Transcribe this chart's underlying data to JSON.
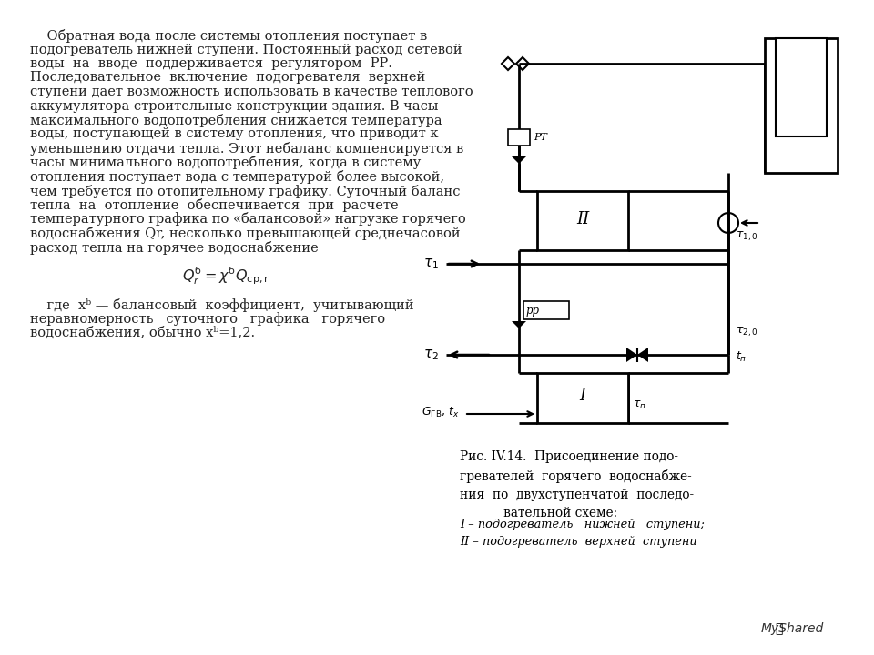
{
  "bg_color": "#ffffff",
  "text_color": "#222222",
  "main_text_lines": [
    "    Обратная вода после системы отопления поступает в",
    "подогреватель нижней ступени. Постоянный расход сетевой",
    "воды  на  вводе  поддерживается  регулятором  РР.",
    "Последовательное  включение  подогревателя  верхней",
    "ступени дает возможность использовать в качестве теплового",
    "аккумулятора строительные конструкции здания. В часы",
    "максимального водопотребления снижается температура",
    "воды, поступающей в систему отопления, что приводит к",
    "уменьшению отдачи тепла. Этот небаланс компенсируется в",
    "часы минимального водопотребления, когда в систему",
    "отопления поступает вода с температурой более высокой,",
    "чем требуется по отопительному графику. Суточный баланс",
    "тепла  на  отопление  обеспечивается  при  расчете",
    "температурного графика по «балансовой» нагрузке горячего",
    "водоснабжения Qr, несколько превышающей среднечасовой",
    "расход тепла на горячее водоснабжение"
  ],
  "para2_lines": [
    "    где  xᵇ — балансовый  коэффициент,  учитывающий",
    "неравномерность   суточного   графика   горячего",
    "водоснабжения, обычно xᵇ=1,2."
  ],
  "caption_lines": [
    "Рис. IV.14.  Присоединение подо-",
    "гревателей горячего водоснабже-",
    "ния по двухступенчатой последо-",
    "вательной схеме:"
  ],
  "caption2_lines": [
    "I – подогреватель   нижней   ступени;",
    "II – подогреватель  верхней  ступени"
  ]
}
